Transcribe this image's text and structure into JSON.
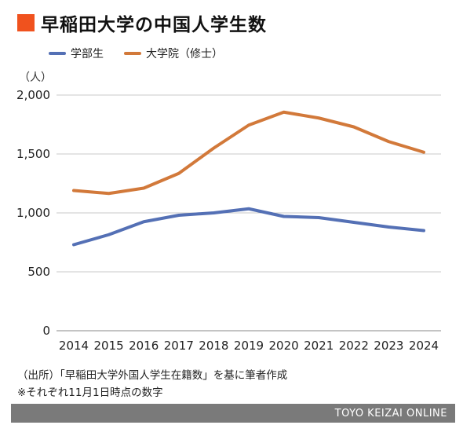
{
  "header": {
    "title": "早稲田大学の中国人学生数"
  },
  "chart_data": {
    "type": "line",
    "title": "早稲田大学の中国人学生数",
    "ylabel": "（人）",
    "xlabel": "",
    "ylim": [
      0,
      2000
    ],
    "yticks": [
      "0",
      "500",
      "1,000",
      "1,500",
      "2,000"
    ],
    "ytick_values": [
      0,
      500,
      1000,
      1500,
      2000
    ],
    "categories": [
      "2014",
      "2015",
      "2016",
      "2017",
      "2018",
      "2019",
      "2020",
      "2021",
      "2022",
      "2023",
      "2024"
    ],
    "series": [
      {
        "name": "学部生",
        "color": "#5470b5",
        "values": [
          730,
          815,
          925,
          980,
          1000,
          1035,
          970,
          960,
          920,
          880,
          850
        ]
      },
      {
        "name": "大学院（修士）",
        "color": "#d2793a",
        "values": [
          1190,
          1165,
          1210,
          1335,
          1550,
          1745,
          1855,
          1805,
          1730,
          1605,
          1515
        ]
      }
    ],
    "grid": true,
    "legend_position": "top-left"
  },
  "notes": {
    "source": "（出所）「早稲田大学外国人学生在籍数」を基に筆者作成",
    "remark": "※それぞれ11月1日時点の数字"
  },
  "footer": {
    "brand": "TOYO KEIZAI ONLINE"
  }
}
